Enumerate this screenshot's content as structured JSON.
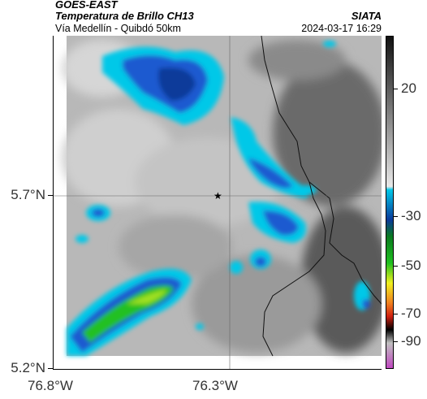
{
  "header": {
    "title": "GOES-EAST",
    "subtitle": "Temperatura de Brillo CH13",
    "source": "Vía Medellín - Quibdó 50km",
    "brand": "SIATA",
    "datetime": "2024-03-17 16:29"
  },
  "map": {
    "lat_labels": [
      "5.7°N",
      "5.2°N"
    ],
    "lon_labels": [
      "76.8°W",
      "76.3°W"
    ],
    "marker": "star-marker"
  },
  "colorbar": {
    "labels": [
      "20",
      "-30",
      "-50",
      "-70",
      "-90"
    ],
    "colors": {
      "gray_warm": "#3a3a3a",
      "gray_light": "#d8d8d8",
      "cyan": "#00c8e8",
      "blue": "#0a3a9a",
      "green": "#20c020",
      "yellow": "#f0f020",
      "red": "#d02010",
      "black": "#000000",
      "magenta": "#c040c0"
    }
  }
}
